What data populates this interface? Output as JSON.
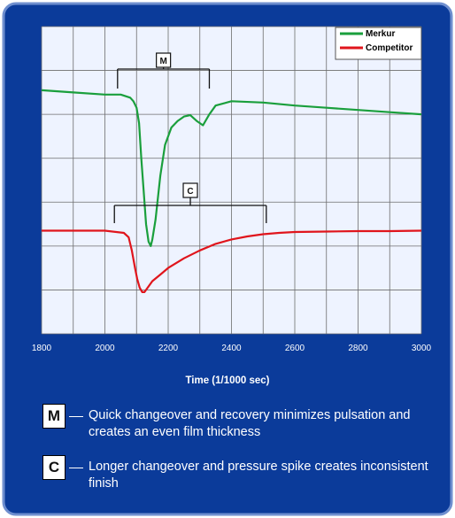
{
  "colors": {
    "panel_bg": "#0b3b9a",
    "panel_border": "#6f8fcf",
    "plot_bg": "#eef3ff",
    "grid": "#6d6d6d",
    "merkur": "#1a9f3c",
    "competitor": "#e0151c"
  },
  "chart_data": {
    "type": "line",
    "title": "",
    "xlabel": "Time (1/1000 sec)",
    "ylabel": "",
    "xlim": [
      1800,
      3000
    ],
    "ylim": [
      0,
      7
    ],
    "x_ticks": [
      "1800",
      "2000",
      "2200",
      "2400",
      "2600",
      "2800",
      "3000"
    ],
    "grid": true,
    "legend_placement": "top-right",
    "legend": [
      "Merkur",
      "Competitor"
    ],
    "series": [
      {
        "name": "Merkur",
        "x": [
          1800,
          1900,
          2000,
          2050,
          2080,
          2090,
          2100,
          2108,
          2115,
          2123,
          2130,
          2138,
          2145,
          2150,
          2160,
          2175,
          2190,
          2210,
          2230,
          2250,
          2270,
          2290,
          2310,
          2330,
          2350,
          2400,
          2500,
          2600,
          2700,
          2800,
          2900,
          3000
        ],
        "y": [
          5.55,
          5.5,
          5.45,
          5.45,
          5.38,
          5.3,
          5.15,
          4.8,
          4.0,
          3.2,
          2.5,
          2.1,
          2.0,
          2.15,
          2.6,
          3.6,
          4.3,
          4.7,
          4.85,
          4.95,
          4.98,
          4.85,
          4.75,
          5.0,
          5.2,
          5.3,
          5.27,
          5.2,
          5.15,
          5.1,
          5.05,
          5.0
        ]
      },
      {
        "name": "Competitor",
        "x": [
          1800,
          1900,
          2000,
          2060,
          2075,
          2085,
          2095,
          2102,
          2110,
          2118,
          2125,
          2135,
          2150,
          2175,
          2200,
          2250,
          2300,
          2350,
          2400,
          2450,
          2500,
          2550,
          2600,
          2700,
          2800,
          2900,
          3000
        ],
        "y": [
          2.35,
          2.35,
          2.35,
          2.3,
          2.2,
          1.9,
          1.5,
          1.25,
          1.05,
          0.95,
          0.95,
          1.05,
          1.2,
          1.35,
          1.5,
          1.72,
          1.9,
          2.05,
          2.15,
          2.22,
          2.27,
          2.3,
          2.32,
          2.33,
          2.34,
          2.34,
          2.35
        ]
      }
    ],
    "annotations": [
      {
        "label": "M",
        "x_start": 2040,
        "x_end": 2330
      },
      {
        "label": "C",
        "x_start": 2030,
        "x_end": 2510
      }
    ]
  },
  "notes": [
    {
      "label": "M",
      "text": "Quick changeover and recovery minimizes pulsation and creates an even film thickness"
    },
    {
      "label": "C",
      "text": "Longer changeover and pressure spike creates inconsistent finish"
    }
  ]
}
